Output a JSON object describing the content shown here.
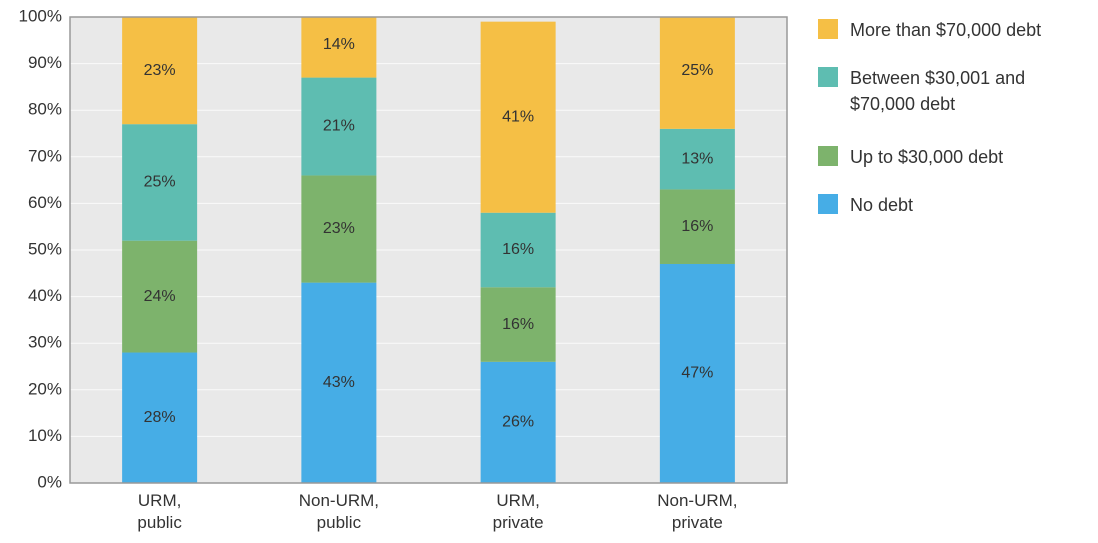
{
  "chart_data": {
    "type": "stacked_bar",
    "categories": [
      "URM, public",
      "Non-URM, public",
      "URM, private",
      "Non-URM, private"
    ],
    "series": [
      {
        "name": "No debt",
        "color": "#46ade6",
        "values": [
          28,
          43,
          26,
          47
        ],
        "value_labels": [
          "28%",
          "43%",
          "26%",
          "47%"
        ]
      },
      {
        "name": "Up to $30,000 debt",
        "color": "#7db36c",
        "values": [
          24,
          23,
          16,
          16
        ],
        "value_labels": [
          "24%",
          "23%",
          "16%",
          "16%"
        ]
      },
      {
        "name": "Between $30,001 and $70,000 debt",
        "color": "#5ebdb1",
        "values": [
          25,
          21,
          16,
          13
        ],
        "value_labels": [
          "25%",
          "21%",
          "16%",
          "13%"
        ]
      },
      {
        "name": "More than $70,000 debt",
        "color": "#f5bf45",
        "values": [
          23,
          14,
          41,
          25
        ],
        "value_labels": [
          "23%",
          "14%",
          "41%",
          "25%"
        ]
      }
    ],
    "ylim": [
      0,
      100
    ],
    "yticks": [
      {
        "value": 0,
        "label": "0%"
      },
      {
        "value": 10,
        "label": "10%"
      },
      {
        "value": 20,
        "label": "20%"
      },
      {
        "value": 30,
        "label": "30%"
      },
      {
        "value": 40,
        "label": "40%"
      },
      {
        "value": 50,
        "label": "50%"
      },
      {
        "value": 60,
        "label": "60%"
      },
      {
        "value": 70,
        "label": "70%"
      },
      {
        "value": 80,
        "label": "80%"
      },
      {
        "value": 90,
        "label": "90%"
      },
      {
        "value": 100,
        "label": "100%"
      }
    ],
    "grid": true,
    "legend": "right"
  }
}
